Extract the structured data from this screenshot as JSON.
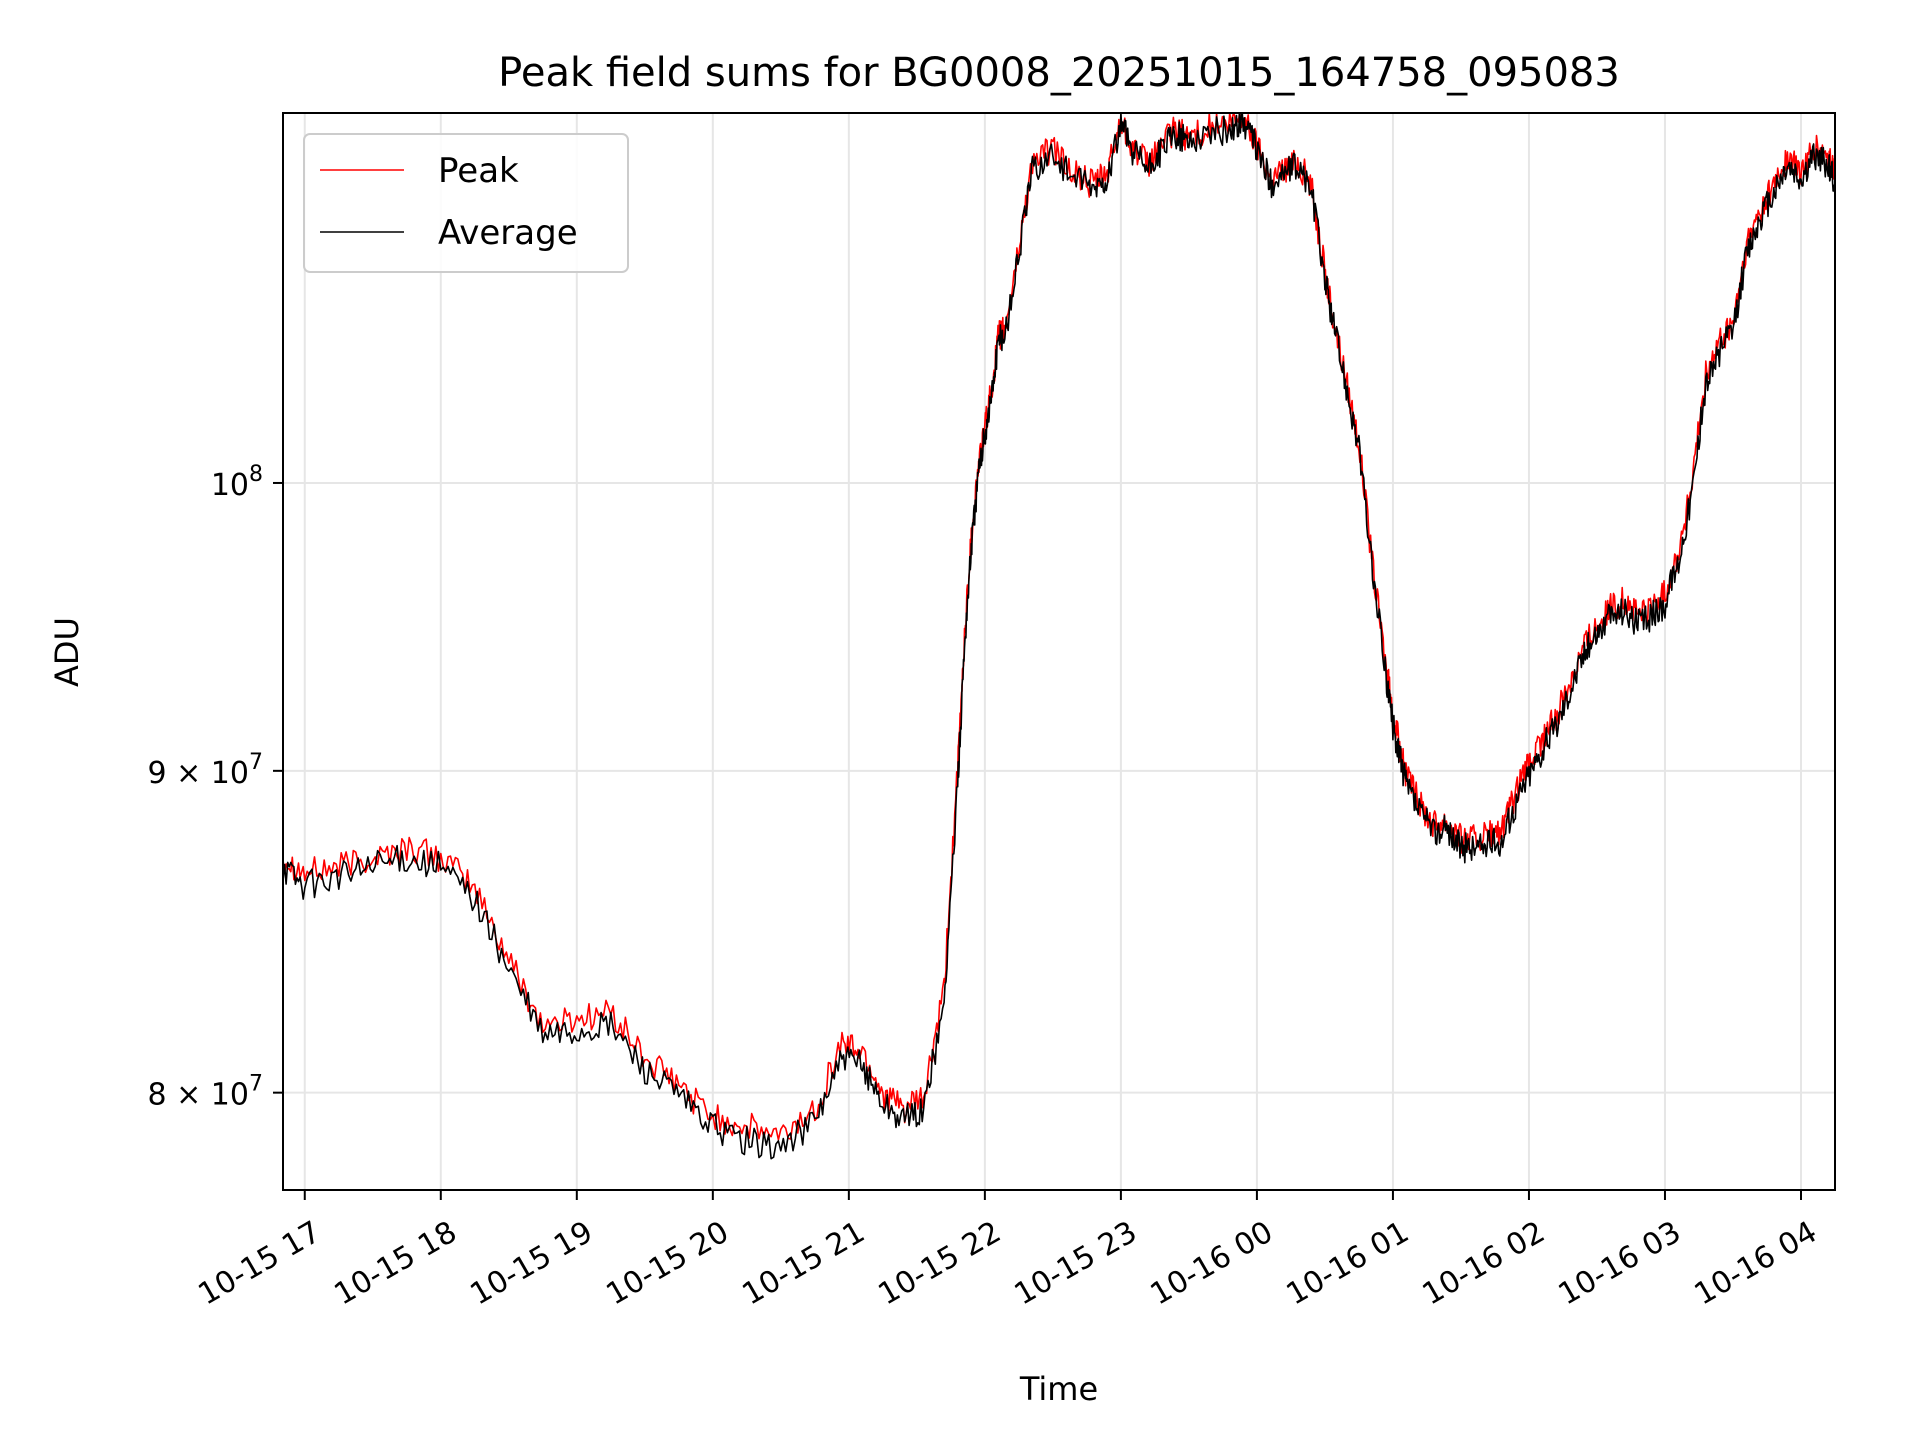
{
  "chart_data": {
    "type": "line",
    "title": "Peak field sums for BG0008_20251015_164758_095083",
    "xlabel": "Time",
    "ylabel": "ADU",
    "y_scale": "log",
    "ylim": [
      77200000,
      114500000
    ],
    "x_unit": "hours since 2025-10-15 00:00",
    "xlim": [
      16.84,
      28.25
    ],
    "grid": true,
    "legend_position": "upper-left",
    "colors": {
      "Peak": "#ff0000",
      "Average": "#000000",
      "grid": "#e6e6e6"
    },
    "x_ticks": [
      {
        "value": 17,
        "label": "10-15 17"
      },
      {
        "value": 18,
        "label": "10-15 18"
      },
      {
        "value": 19,
        "label": "10-15 19"
      },
      {
        "value": 20,
        "label": "10-15 20"
      },
      {
        "value": 21,
        "label": "10-15 21"
      },
      {
        "value": 22,
        "label": "10-15 22"
      },
      {
        "value": 23,
        "label": "10-15 23"
      },
      {
        "value": 24,
        "label": "10-16 00"
      },
      {
        "value": 25,
        "label": "10-16 01"
      },
      {
        "value": 26,
        "label": "10-16 02"
      },
      {
        "value": 27,
        "label": "10-16 03"
      },
      {
        "value": 28,
        "label": "10-16 04"
      }
    ],
    "y_ticks": [
      {
        "value": 80000000,
        "mantissa": "8",
        "exponent": "7"
      },
      {
        "value": 90000000,
        "mantissa": "9",
        "exponent": "7"
      },
      {
        "value": 100000000,
        "mantissa": "10",
        "exponent": "8"
      }
    ],
    "series": [
      {
        "name": "Peak",
        "x": [
          16.84,
          17.0,
          17.25,
          17.5,
          17.75,
          18.0,
          18.25,
          18.5,
          18.75,
          19.0,
          19.25,
          19.5,
          19.75,
          20.0,
          20.25,
          20.5,
          20.75,
          20.95,
          21.1,
          21.25,
          21.4,
          21.55,
          21.7,
          21.8,
          21.85,
          21.9,
          21.95,
          22.0,
          22.05,
          22.1,
          22.15,
          22.25,
          22.35,
          22.5,
          22.65,
          22.8,
          22.9,
          23.0,
          23.1,
          23.2,
          23.3,
          23.4,
          23.5,
          23.65,
          23.8,
          23.9,
          24.0,
          24.1,
          24.2,
          24.3,
          24.4,
          24.5,
          24.55,
          24.65,
          24.75,
          24.85,
          24.95,
          25.0,
          25.05,
          25.1,
          25.2,
          25.3,
          25.4,
          25.5,
          25.6,
          25.7,
          25.8,
          25.9,
          26.0,
          26.1,
          26.2,
          26.3,
          26.4,
          26.5,
          26.6,
          26.7,
          26.8,
          26.9,
          27.0,
          27.1,
          27.2,
          27.3,
          27.4,
          27.5,
          27.6,
          27.7,
          27.8,
          27.9,
          28.0,
          28.1,
          28.2,
          28.25
        ],
        "y": [
          87200000,
          86700000,
          86900000,
          87200000,
          87500000,
          87200000,
          86200000,
          84000000,
          82000000,
          82200000,
          82400000,
          81000000,
          80200000,
          79300000,
          79000000,
          78700000,
          79500000,
          81500000,
          81200000,
          80000000,
          79500000,
          79800000,
          83000000,
          90000000,
          94500000,
          98000000,
          100500000,
          102000000,
          103500000,
          105500000,
          105800000,
          109000000,
          112500000,
          113000000,
          112000000,
          111500000,
          112000000,
          114200000,
          113000000,
          112300000,
          113200000,
          113800000,
          113500000,
          113900000,
          114000000,
          114300000,
          113200000,
          111800000,
          112200000,
          112500000,
          111500000,
          108000000,
          106500000,
          104000000,
          101500000,
          97000000,
          93500000,
          91800000,
          90800000,
          89800000,
          88900000,
          88300000,
          88400000,
          87800000,
          87800000,
          87900000,
          88000000,
          89200000,
          90200000,
          91000000,
          91800000,
          93000000,
          94200000,
          95000000,
          95500000,
          95800000,
          95300000,
          95500000,
          96000000,
          97500000,
          100000000,
          104000000,
          105200000,
          106000000,
          109000000,
          110500000,
          111500000,
          112600000,
          112000000,
          113000000,
          112600000,
          112000000
        ]
      },
      {
        "name": "Average",
        "x": [
          16.84,
          17.0,
          17.25,
          17.5,
          17.75,
          18.0,
          18.25,
          18.5,
          18.75,
          19.0,
          19.25,
          19.5,
          19.75,
          20.0,
          20.25,
          20.5,
          20.75,
          20.95,
          21.1,
          21.25,
          21.4,
          21.55,
          21.7,
          21.8,
          21.85,
          21.9,
          21.95,
          22.0,
          22.05,
          22.1,
          22.15,
          22.25,
          22.35,
          22.5,
          22.65,
          22.8,
          22.9,
          23.0,
          23.1,
          23.2,
          23.3,
          23.4,
          23.5,
          23.65,
          23.8,
          23.9,
          24.0,
          24.1,
          24.2,
          24.3,
          24.4,
          24.5,
          24.55,
          24.65,
          24.75,
          24.85,
          24.95,
          25.0,
          25.05,
          25.1,
          25.2,
          25.3,
          25.4,
          25.5,
          25.6,
          25.7,
          25.8,
          25.9,
          26.0,
          26.1,
          26.2,
          26.3,
          26.4,
          26.5,
          26.6,
          26.7,
          26.8,
          26.9,
          27.0,
          27.1,
          27.2,
          27.3,
          27.4,
          27.5,
          27.6,
          27.7,
          27.8,
          27.9,
          28.0,
          28.1,
          28.2,
          28.25
        ],
        "y": [
          86900000,
          86300000,
          86600000,
          86900000,
          87200000,
          86900000,
          85900000,
          83700000,
          81700000,
          81800000,
          82000000,
          80700000,
          79900000,
          79000000,
          78600000,
          78400000,
          79200000,
          81000000,
          80800000,
          79700000,
          79200000,
          79500000,
          82600000,
          89500000,
          94200000,
          97700000,
          100200000,
          101800000,
          103300000,
          105300000,
          105600000,
          108800000,
          112200000,
          112800000,
          111800000,
          111300000,
          111800000,
          114000000,
          112800000,
          112100000,
          113000000,
          113600000,
          113300000,
          113700000,
          113800000,
          114200000,
          113000000,
          111600000,
          112000000,
          112300000,
          111300000,
          107800000,
          106300000,
          103800000,
          101300000,
          96800000,
          93200000,
          91500000,
          90500000,
          89500000,
          88600000,
          88000000,
          88100000,
          87500000,
          87500000,
          87600000,
          87700000,
          88900000,
          89900000,
          90700000,
          91500000,
          92700000,
          93900000,
          94700000,
          95200000,
          95500000,
          95000000,
          95200000,
          95700000,
          97200000,
          99700000,
          103700000,
          104900000,
          105700000,
          108700000,
          110200000,
          111200000,
          112300000,
          111700000,
          112700000,
          112300000,
          111700000
        ]
      }
    ]
  }
}
